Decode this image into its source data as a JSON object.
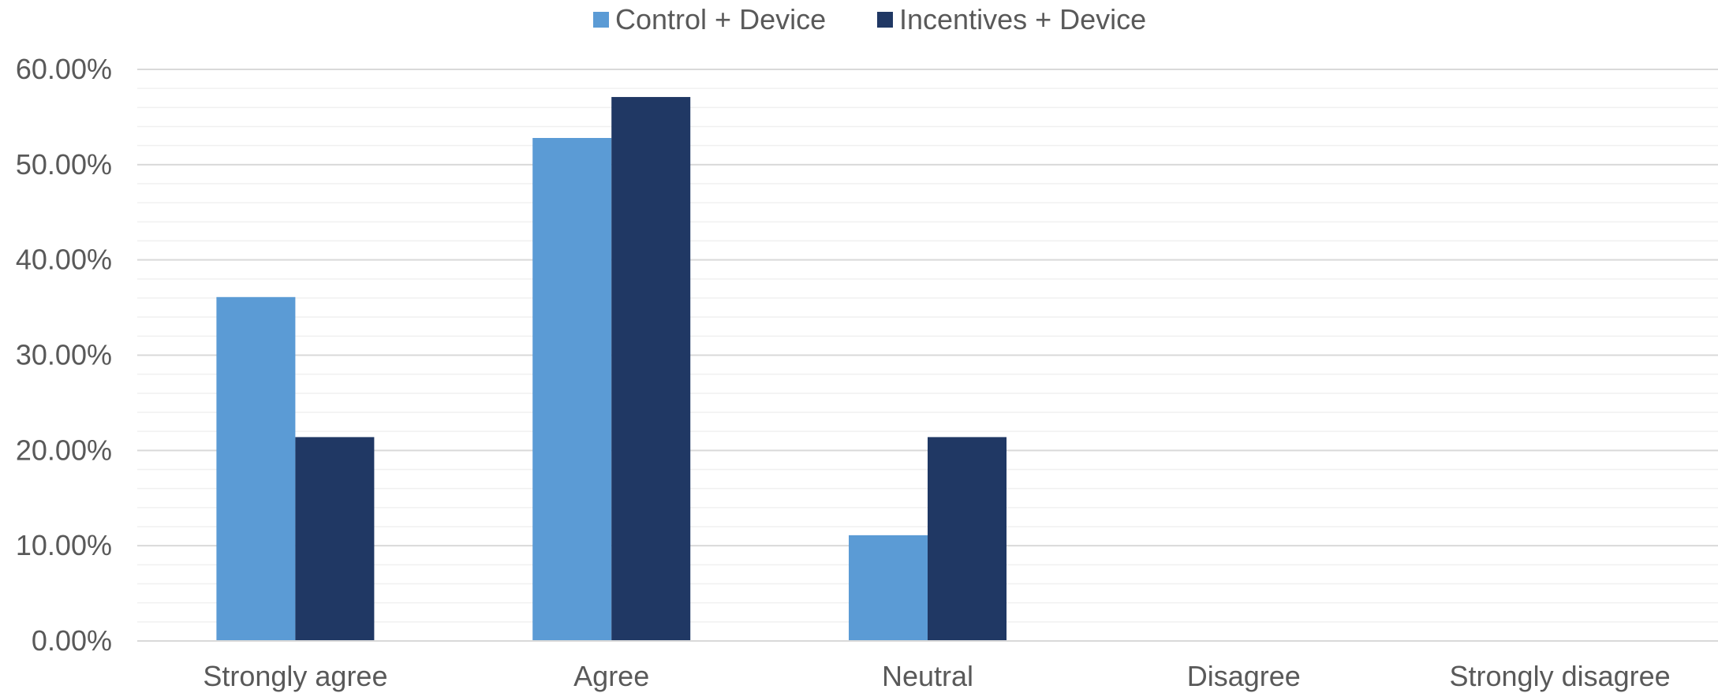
{
  "chart_data": {
    "type": "bar",
    "categories": [
      "Strongly agree",
      "Agree",
      "Neutral",
      "Disagree",
      "Strongly disagree"
    ],
    "series": [
      {
        "name": "Control + Device",
        "color": "#5B9BD5",
        "values": [
          36.1,
          52.8,
          11.1,
          0,
          0
        ]
      },
      {
        "name": "Incentives + Device",
        "color": "#203864",
        "values": [
          21.4,
          57.1,
          21.4,
          0,
          0
        ]
      }
    ],
    "ylim": [
      0,
      60
    ],
    "yticks": [
      "0.00%",
      "10.00%",
      "20.00%",
      "30.00%",
      "40.00%",
      "50.00%",
      "60.00%"
    ],
    "grid": true,
    "legend_position": "top-center"
  }
}
